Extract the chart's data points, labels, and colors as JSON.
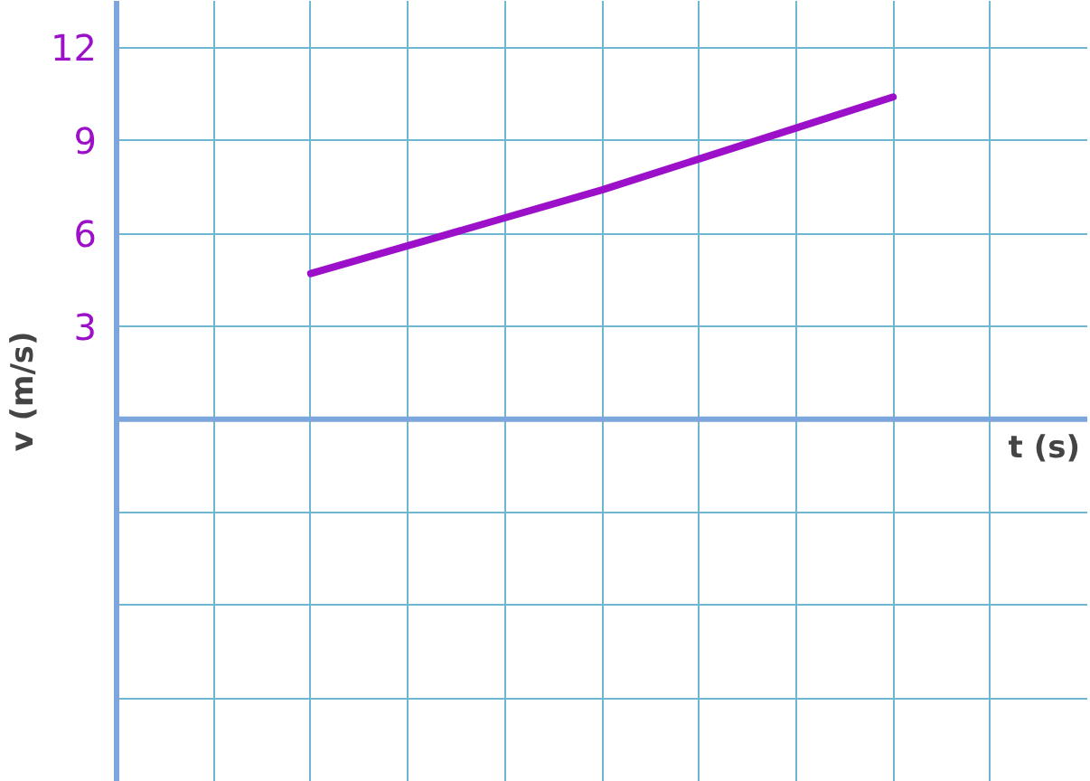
{
  "chart_data": {
    "type": "line",
    "xlabel": "t (s)",
    "ylabel": "v (m/s)",
    "categories": [
      null,
      null,
      null,
      null,
      null,
      null,
      null,
      null,
      null,
      null,
      null
    ],
    "series": [
      {
        "color": "#9b10c8",
        "values": [
          null,
          null,
          4.7,
          5.6,
          6.5,
          7.4,
          8.4,
          9.4,
          10.4,
          null,
          null
        ]
      }
    ],
    "ylim": [
      -11.7,
      13.5
    ],
    "yticks": [
      {
        "value": -9,
        "label": null
      },
      {
        "value": -6,
        "label": null
      },
      {
        "value": -3,
        "label": null
      },
      {
        "value": 0,
        "label": null
      },
      3,
      6,
      9,
      12
    ],
    "ref_lines": [
      {
        "axis": "y",
        "value": 0,
        "color": "#7da6dc"
      }
    ],
    "grid": true,
    "tick_labels": "y",
    "line_style": "solid"
  }
}
